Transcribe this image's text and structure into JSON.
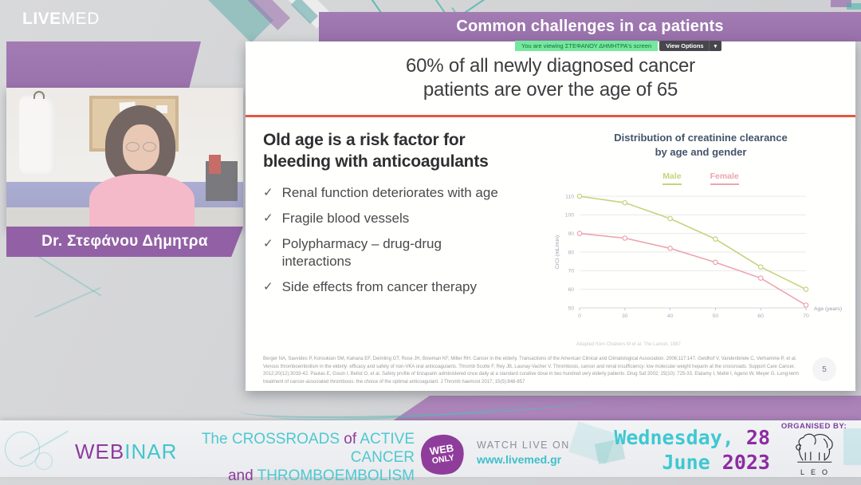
{
  "branding": {
    "live": "LIVE",
    "med": "MED"
  },
  "webcam": {
    "speaker_name": "Dr. Στεφάνου Δήμητρα"
  },
  "meeting_banner": {
    "viewing_text": "You are viewing ΣΤΕΦΑΝΟΥ ΔΗΜΗΤΡΑ's screen",
    "view_options_label": "View Options",
    "caret": "▾"
  },
  "slide": {
    "title": "Common challenges in ca patients",
    "headline": "60% of all newly diagnosed cancer patients are over the age of 65",
    "subtitle": "Old age is a risk factor for bleeding with anticoagulants",
    "check_glyph": "✓",
    "bullets": [
      "Renal function deteriorates with age",
      "Fragile blood vessels",
      "Polypharmacy – drug-drug interactions",
      "Side effects from cancer therapy"
    ],
    "references": "Berger NA, Savvides P, Koroukian SM, Kahana EF, Deimling GT, Rose JH, Bowman KF, Miller RH. Cancer in the elderly. Transactions of the American Clinical and Climatological Association. 2006;117:147.   Geldhof V, Vandenbriele C, Verhamme P, et al. Venous thromboembolism in the elderly: efficacy and safety of non-VKA oral anticoagulants. Thromb Scotte F, Rey JB, Launay-Vacher V. Thrombosis, cancer and renal insufficiency: low molecular weight heparin at the crossroads. Support Care Cancer. 2012;20(12):3033-42. Pautas E, Gouin I, Bellot O, et al. Safety profile of tinzaparin administered once daily at a standard curative dose in two hundred very elderly patients. Drug Saf 2002; 25(10): 725-33.  Elalamy I, Mahé I, Ageno W, Meyer G. Long-term treatment of cancer-associated thrombosis: the choice of the optimal anticoagulant. J Thromb haemost 2017; 15(5):848-857",
    "page_number": "5"
  },
  "chart_data": {
    "type": "line",
    "title": "Distribution of creatinine clearance by age and gender",
    "title_lines": [
      "Distribution of creatinine clearance",
      "by age and gender"
    ],
    "categories": [
      "0",
      "30",
      "40",
      "50",
      "60",
      "70"
    ],
    "xlabel": "Age (years)",
    "ylabel": "CrCl (mL/min)",
    "ylim": [
      50,
      110
    ],
    "ytick_step": 10,
    "grid": true,
    "legend_position": "top",
    "series": [
      {
        "name": "Male",
        "color": "#c3d47c",
        "values": [
          110,
          106.5,
          98,
          87,
          72,
          60
        ]
      },
      {
        "name": "Female",
        "color": "#eda4ad",
        "values": [
          90,
          87.5,
          82,
          74.5,
          66,
          51.5
        ]
      }
    ],
    "footnote": "Adapted from Chalvers M et al. The Lancet. 1987"
  },
  "footer": {
    "webinar_web": "WEB",
    "webinar_inar": "INAR",
    "event_title": {
      "t1": "The",
      "t2": "CROSSROADS",
      "t3": "of",
      "t4": "ACTIVE CANCER",
      "t5": "and",
      "t6": "THROMBOEMBOLISM"
    },
    "badge": {
      "line1": "WEB",
      "line2": "ONLY"
    },
    "watch": {
      "line1": "WATCH LIVE ON",
      "line2": "www.livemed.gr"
    },
    "date": {
      "day_word": "Wednesday,",
      "day_num": "28",
      "month": "June",
      "year": "2023"
    },
    "organiser": {
      "label": "ORGANISED BY:",
      "letters": "LEO"
    }
  }
}
